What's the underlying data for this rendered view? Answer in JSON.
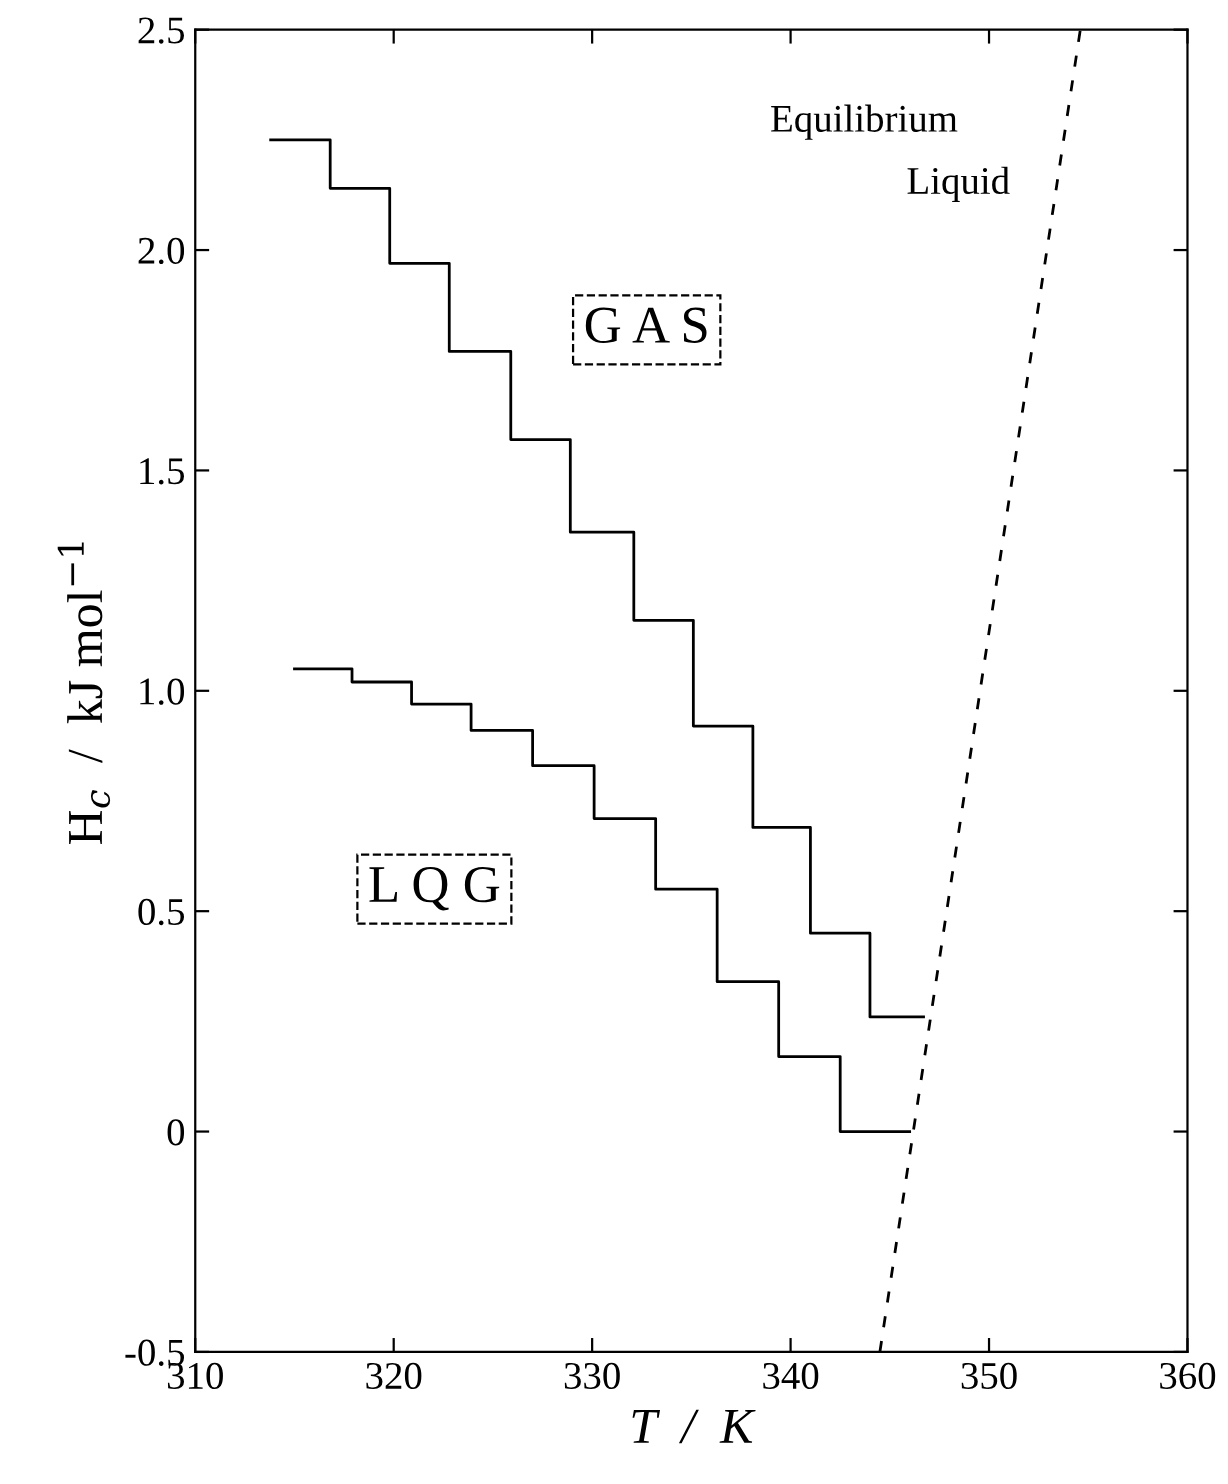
{
  "chart_data": {
    "type": "step",
    "xlabel": "T  /  K",
    "ylabel": "H$_{c}$  /  kJ mol$^{−1}$",
    "xlim": [
      310,
      360
    ],
    "xticks": [
      310,
      320,
      330,
      340,
      350,
      360
    ],
    "ylim": [
      -0.5,
      2.5
    ],
    "yticks": [
      -0.5,
      0,
      0.5,
      {
        "value": 1,
        "label": "1.0"
      },
      1.5,
      {
        "value": 2,
        "label": "2.0"
      },
      2.5
    ],
    "grid": false,
    "marker": "none",
    "series": [
      {
        "color": "#000000",
        "x": [
          313.8,
          316.8,
          319.8,
          322.8,
          325.9,
          328.9,
          332.1,
          335.1,
          338.1,
          341.0,
          344.0,
          346.7
        ],
        "values": [
          2.25,
          2.14,
          1.97,
          1.77,
          1.57,
          1.36,
          1.16,
          0.92,
          0.69,
          0.45,
          0.26,
          0.26
        ]
      },
      {
        "color": "#000000",
        "x": [
          315.0,
          317.9,
          320.9,
          323.9,
          327.0,
          330.1,
          333.2,
          336.3,
          339.4,
          342.5,
          346.0
        ],
        "values": [
          1.05,
          1.02,
          0.97,
          0.91,
          0.83,
          0.71,
          0.55,
          0.34,
          0.17,
          0.0,
          0.0
        ]
      },
      {
        "type": "line",
        "line_style": "dashed",
        "color": "#000000",
        "x": [
          344.5,
          354.6
        ],
        "values": [
          -0.5,
          2.5
        ]
      }
    ],
    "annotations": [
      "G A S",
      "L Q G",
      "Equilibrium",
      "Liquid"
    ]
  }
}
